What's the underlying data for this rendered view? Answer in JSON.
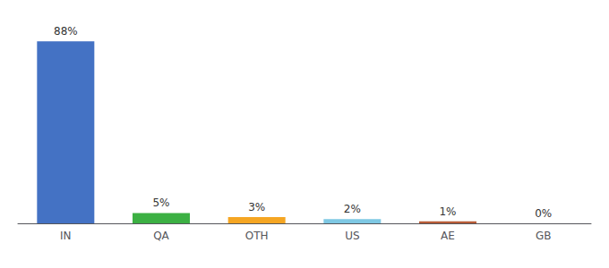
{
  "chart_data": {
    "type": "bar",
    "categories": [
      "IN",
      "QA",
      "OTH",
      "US",
      "AE",
      "GB"
    ],
    "values": [
      88,
      5,
      3,
      2,
      1,
      0
    ],
    "value_labels": [
      "88%",
      "5%",
      "3%",
      "2%",
      "1%",
      "0%"
    ],
    "data_labels": true,
    "colors": [
      "#4472C4",
      "#3CB043",
      "#F5A623",
      "#7EC8E3",
      "#B85C38",
      "#5B9BD5"
    ],
    "ylim": [
      0,
      95
    ],
    "tick_labels": "x",
    "grid": false
  }
}
